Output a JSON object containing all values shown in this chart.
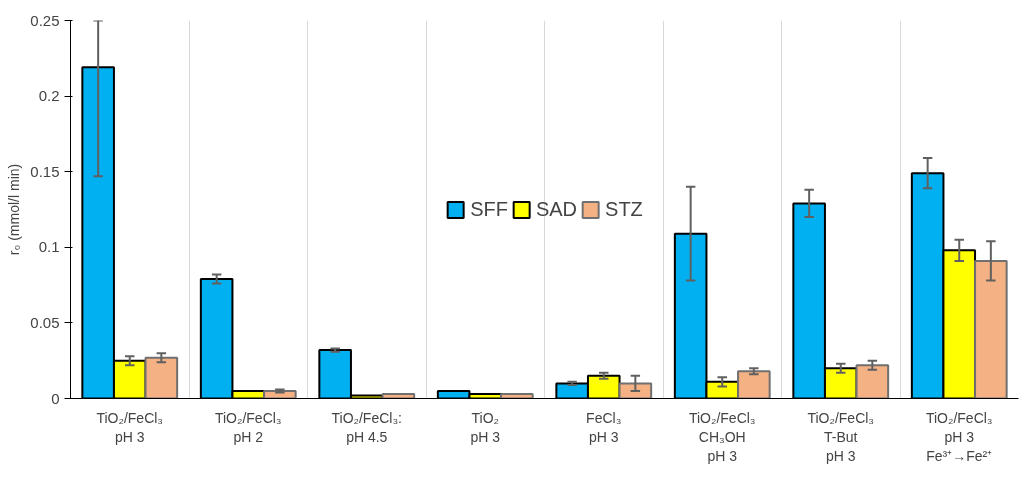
{
  "chart_data": {
    "type": "bar",
    "ylabel": "r₀ (mmol/l min)",
    "categories": [
      "TiO₂/FeCl₃\npH 3",
      "TiO₂/FeCl₃\npH 2",
      "TiO₂/FeCl₃:\npH 4.5",
      "TiO₂\npH 3",
      "FeCl₃\npH 3",
      "TiO₂/FeCl₃\nCH₃OH\npH 3",
      "TiO₂/FeCl₃\nT-But\npH 3",
      "TiO₂/FeCl₃\npH 3\nFe³⁺→Fe²⁺"
    ],
    "series": [
      {
        "name": "SFF",
        "color": "#00b0f0",
        "values": [
          0.219,
          0.079,
          0.032,
          0.005,
          0.01,
          0.109,
          0.129,
          0.149
        ],
        "errors": [
          [
            0.147,
            0.25
          ],
          0.003,
          0.001,
          null,
          0.001,
          0.031,
          0.009,
          0.01
        ]
      },
      {
        "name": "SAD",
        "color": "#ffff00",
        "values": [
          0.025,
          0.005,
          0.002,
          0.003,
          0.015,
          0.011,
          0.02,
          0.098
        ],
        "errors": [
          0.003,
          null,
          null,
          null,
          0.002,
          0.003,
          0.003,
          0.007
        ]
      },
      {
        "name": "STZ",
        "color": "#f4b183",
        "values": [
          0.027,
          0.005,
          0.003,
          0.003,
          0.01,
          0.018,
          0.022,
          0.091
        ],
        "errors": [
          0.003,
          0.001,
          null,
          null,
          0.005,
          0.002,
          0.003,
          0.013
        ]
      }
    ],
    "ylim": [
      0,
      0.25
    ],
    "yticks": [
      0,
      0.05,
      0.1,
      0.15,
      0.2,
      0.25
    ],
    "grid": "x",
    "legend": "center"
  }
}
